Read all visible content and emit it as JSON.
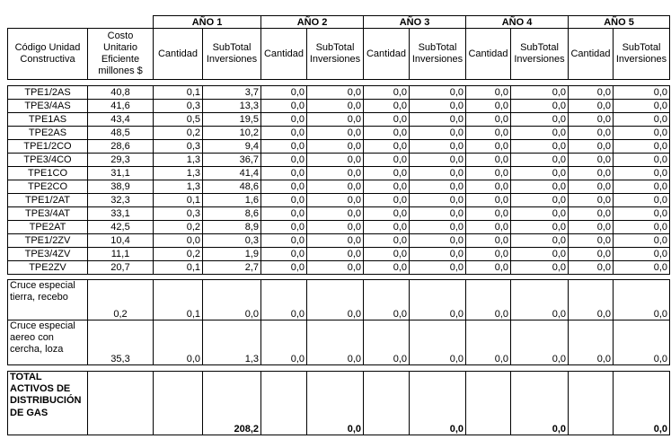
{
  "header": {
    "col1": "Código Unidad Constructiva",
    "col2": "Costo Unitario Eficiente millones $",
    "years": [
      "AÑO 1",
      "AÑO 2",
      "AÑO 3",
      "AÑO 4",
      "AÑO 5"
    ],
    "cantidad": "Cantidad",
    "subtotal": "SubTotal Inversiones"
  },
  "rows": [
    {
      "code": "TPE1/2AS",
      "cost": "40,8",
      "values": [
        "0,1",
        "3,7",
        "0,0",
        "0,0",
        "0,0",
        "0,0",
        "0,0",
        "0,0",
        "0,0",
        "0,0"
      ]
    },
    {
      "code": "TPE3/4AS",
      "cost": "41,6",
      "values": [
        "0,3",
        "13,3",
        "0,0",
        "0,0",
        "0,0",
        "0,0",
        "0,0",
        "0,0",
        "0,0",
        "0,0"
      ]
    },
    {
      "code": "TPE1AS",
      "cost": "43,4",
      "values": [
        "0,5",
        "19,5",
        "0,0",
        "0,0",
        "0,0",
        "0,0",
        "0,0",
        "0,0",
        "0,0",
        "0,0"
      ]
    },
    {
      "code": "TPE2AS",
      "cost": "48,5",
      "values": [
        "0,2",
        "10,2",
        "0,0",
        "0,0",
        "0,0",
        "0,0",
        "0,0",
        "0,0",
        "0,0",
        "0,0"
      ]
    },
    {
      "code": "TPE1/2CO",
      "cost": "28,6",
      "values": [
        "0,3",
        "9,4",
        "0,0",
        "0,0",
        "0,0",
        "0,0",
        "0,0",
        "0,0",
        "0,0",
        "0,0"
      ]
    },
    {
      "code": "TPE3/4CO",
      "cost": "29,3",
      "values": [
        "1,3",
        "36,7",
        "0,0",
        "0,0",
        "0,0",
        "0,0",
        "0,0",
        "0,0",
        "0,0",
        "0,0"
      ]
    },
    {
      "code": "TPE1CO",
      "cost": "31,1",
      "values": [
        "1,3",
        "41,4",
        "0,0",
        "0,0",
        "0,0",
        "0,0",
        "0,0",
        "0,0",
        "0,0",
        "0,0"
      ]
    },
    {
      "code": "TPE2CO",
      "cost": "38,9",
      "values": [
        "1,3",
        "48,6",
        "0,0",
        "0,0",
        "0,0",
        "0,0",
        "0,0",
        "0,0",
        "0,0",
        "0,0"
      ]
    },
    {
      "code": "TPE1/2AT",
      "cost": "32,3",
      "values": [
        "0,1",
        "1,6",
        "0,0",
        "0,0",
        "0,0",
        "0,0",
        "0,0",
        "0,0",
        "0,0",
        "0,0"
      ]
    },
    {
      "code": "TPE3/4AT",
      "cost": "33,1",
      "values": [
        "0,3",
        "8,6",
        "0,0",
        "0,0",
        "0,0",
        "0,0",
        "0,0",
        "0,0",
        "0,0",
        "0,0"
      ]
    },
    {
      "code": "TPE2AT",
      "cost": "42,5",
      "values": [
        "0,2",
        "8,9",
        "0,0",
        "0,0",
        "0,0",
        "0,0",
        "0,0",
        "0,0",
        "0,0",
        "0,0"
      ]
    },
    {
      "code": "TPE1/2ZV",
      "cost": "10,4",
      "values": [
        "0,0",
        "0,3",
        "0,0",
        "0,0",
        "0,0",
        "0,0",
        "0,0",
        "0,0",
        "0,0",
        "0,0"
      ]
    },
    {
      "code": "TPE3/4ZV",
      "cost": "11,1",
      "values": [
        "0,2",
        "1,9",
        "0,0",
        "0,0",
        "0,0",
        "0,0",
        "0,0",
        "0,0",
        "0,0",
        "0,0"
      ]
    },
    {
      "code": "TPE2ZV",
      "cost": "20,7",
      "values": [
        "0,1",
        "2,7",
        "0,0",
        "0,0",
        "0,0",
        "0,0",
        "0,0",
        "0,0",
        "0,0",
        "0,0"
      ]
    }
  ],
  "special_rows": [
    {
      "label": "Cruce especial tierra, recebo",
      "cost": "0,2",
      "values": [
        "0,1",
        "0,0",
        "0,0",
        "0,0",
        "0,0",
        "0,0",
        "0,0",
        "0,0",
        "0,0",
        "0,0"
      ]
    },
    {
      "label": "Cruce especial aereo con cercha, loza",
      "cost": "35,3",
      "values": [
        "0,0",
        "1,3",
        "0,0",
        "0,0",
        "0,0",
        "0,0",
        "0,0",
        "0,0",
        "0,0",
        "0,0"
      ]
    }
  ],
  "total": {
    "label": "TOTAL ACTIVOS DE DISTRIBUCIÓN DE GAS",
    "subtotals": [
      "208,2",
      "0,0",
      "0,0",
      "0,0",
      "0,0"
    ]
  },
  "colors": {
    "text": "#000000",
    "border": "#000000",
    "background": "#ffffff"
  }
}
